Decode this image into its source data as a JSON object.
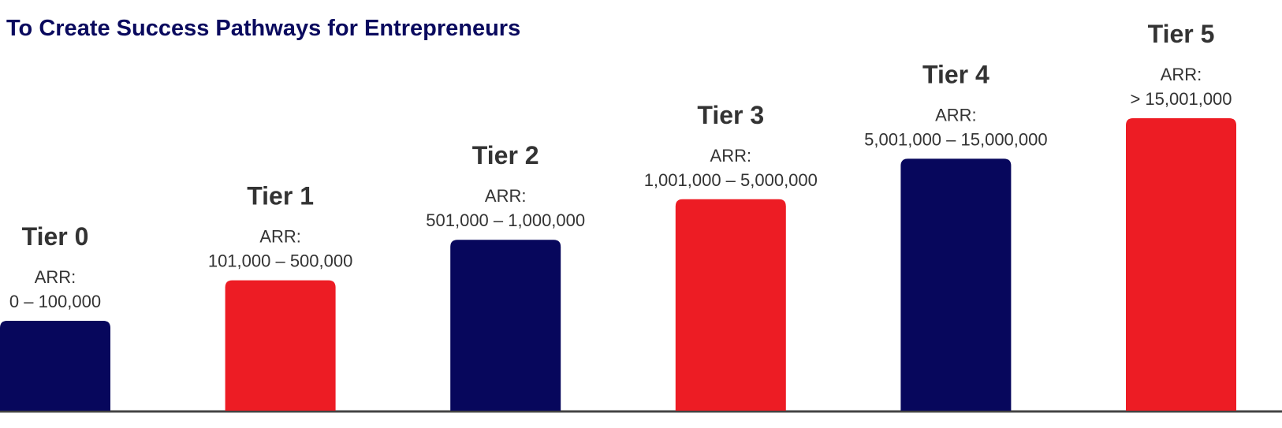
{
  "header": {
    "title": "To Create Success Pathways for Entrepreneurs"
  },
  "tiers": [
    {
      "name": "Tier 0",
      "label": "ARR:",
      "range": "0 – 100,000"
    },
    {
      "name": "Tier 1",
      "label": "ARR:",
      "range": "101,000 – 500,000"
    },
    {
      "name": "Tier 2",
      "label": "ARR:",
      "range": "501,000 – 1,000,000"
    },
    {
      "name": "Tier 3",
      "label": "ARR:",
      "range": "1,001,000 – 5,000,000"
    },
    {
      "name": "Tier 4",
      "label": "ARR:",
      "range": "5,001,000 – 15,000,000"
    },
    {
      "name": "Tier 5",
      "label": "ARR:",
      "range": "> 15,001,000"
    }
  ]
}
